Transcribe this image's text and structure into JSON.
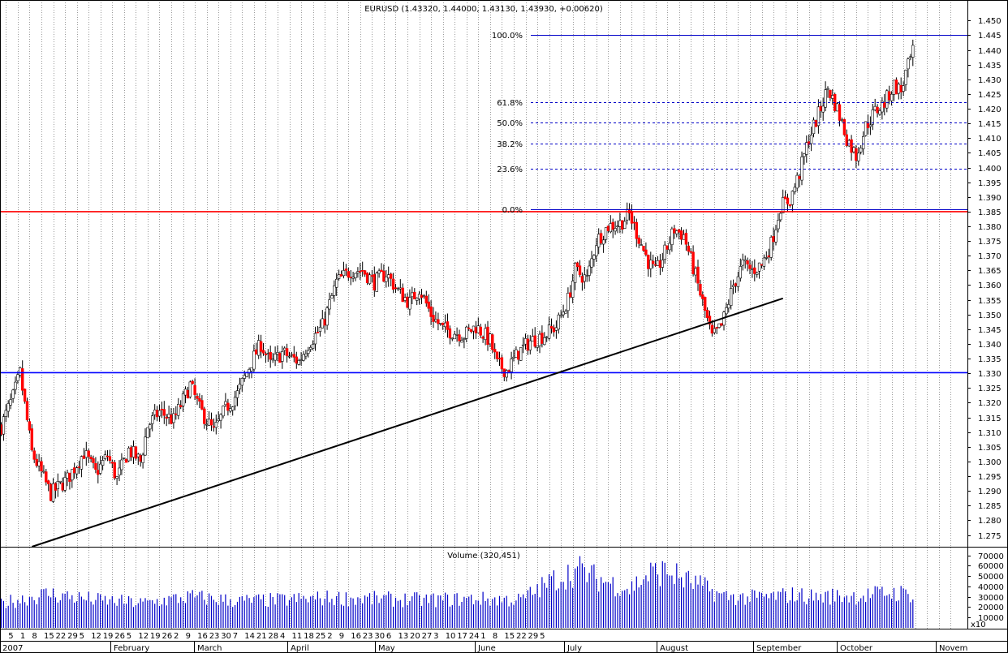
{
  "chart_data": [
    {
      "type": "candlestick",
      "title": "EURUSD (1.43320, 1.44000, 1.43130, 1.43930, +0.00620)",
      "xlabel": "",
      "ylabel": "",
      "ylim": [
        1.271,
        1.457
      ],
      "y_ticks": [
        "1.275",
        "1.280",
        "1.285",
        "1.290",
        "1.295",
        "1.300",
        "1.305",
        "1.310",
        "1.315",
        "1.320",
        "1.325",
        "1.330",
        "1.335",
        "1.340",
        "1.345",
        "1.350",
        "1.355",
        "1.360",
        "1.365",
        "1.370",
        "1.375",
        "1.380",
        "1.385",
        "1.390",
        "1.395",
        "1.400",
        "1.405",
        "1.410",
        "1.415",
        "1.420",
        "1.425",
        "1.430",
        "1.435",
        "1.440",
        "1.445",
        "1.450"
      ],
      "grid": "vertical dotted, weekly",
      "up_color": "#ffffff",
      "down_color": "#ff0000",
      "fibonacci": [
        {
          "label": "100.0%",
          "price": 1.445
        },
        {
          "label": "61.8%",
          "price": 1.4222
        },
        {
          "label": "50.0%",
          "price": 1.4152
        },
        {
          "label": "38.2%",
          "price": 1.4082
        },
        {
          "label": "23.6%",
          "price": 1.3996
        },
        {
          "label": "0.0%",
          "price": 1.3857
        }
      ],
      "horizontal_lines": [
        {
          "name": "resistance",
          "price": 1.385,
          "color": "#ff0000"
        },
        {
          "name": "support",
          "price": 1.3302,
          "color": "#0000ff"
        }
      ],
      "trendline": {
        "from": {
          "day": 13,
          "price": 1.271
        },
        "to": {
          "day": 331,
          "price": 1.3555
        },
        "color": "#000000"
      },
      "price_anchors": [
        [
          0,
          1.312
        ],
        [
          5,
          1.322
        ],
        [
          8,
          1.33
        ],
        [
          13,
          1.303
        ],
        [
          17,
          1.296
        ],
        [
          21,
          1.289
        ],
        [
          28,
          1.294
        ],
        [
          35,
          1.303
        ],
        [
          40,
          1.296
        ],
        [
          45,
          1.302
        ],
        [
          49,
          1.294
        ],
        [
          54,
          1.304
        ],
        [
          59,
          1.3
        ],
        [
          62,
          1.312
        ],
        [
          67,
          1.317
        ],
        [
          73,
          1.314
        ],
        [
          80,
          1.326
        ],
        [
          84,
          1.318
        ],
        [
          90,
          1.31
        ],
        [
          95,
          1.318
        ],
        [
          100,
          1.323
        ],
        [
          106,
          1.334
        ],
        [
          110,
          1.34
        ],
        [
          114,
          1.333
        ],
        [
          119,
          1.337
        ],
        [
          126,
          1.334
        ],
        [
          130,
          1.34
        ],
        [
          136,
          1.346
        ],
        [
          142,
          1.361
        ],
        [
          148,
          1.365
        ],
        [
          153,
          1.365
        ],
        [
          158,
          1.361
        ],
        [
          163,
          1.364
        ],
        [
          168,
          1.358
        ],
        [
          173,
          1.354
        ],
        [
          177,
          1.359
        ],
        [
          182,
          1.35
        ],
        [
          187,
          1.345
        ],
        [
          192,
          1.344
        ],
        [
          196,
          1.343
        ],
        [
          201,
          1.346
        ],
        [
          207,
          1.341
        ],
        [
          210,
          1.333
        ],
        [
          214,
          1.331
        ],
        [
          219,
          1.337
        ],
        [
          224,
          1.341
        ],
        [
          230,
          1.343
        ],
        [
          235,
          1.346
        ],
        [
          240,
          1.355
        ],
        [
          243,
          1.365
        ],
        [
          248,
          1.362
        ],
        [
          252,
          1.375
        ],
        [
          257,
          1.38
        ],
        [
          262,
          1.381
        ],
        [
          266,
          1.384
        ],
        [
          270,
          1.376
        ],
        [
          274,
          1.368
        ],
        [
          277,
          1.364
        ],
        [
          281,
          1.371
        ],
        [
          285,
          1.379
        ],
        [
          289,
          1.377
        ],
        [
          293,
          1.366
        ],
        [
          297,
          1.354
        ],
        [
          301,
          1.342
        ],
        [
          305,
          1.346
        ],
        [
          310,
          1.36
        ],
        [
          314,
          1.367
        ],
        [
          318,
          1.365
        ],
        [
          322,
          1.367
        ],
        [
          326,
          1.374
        ],
        [
          330,
          1.387
        ],
        [
          334,
          1.389
        ],
        [
          338,
          1.398
        ],
        [
          342,
          1.41
        ],
        [
          346,
          1.418
        ],
        [
          350,
          1.427
        ],
        [
          354,
          1.42
        ],
        [
          358,
          1.41
        ],
        [
          362,
          1.404
        ],
        [
          366,
          1.414
        ],
        [
          370,
          1.419
        ],
        [
          374,
          1.422
        ],
        [
          378,
          1.428
        ],
        [
          381,
          1.426
        ],
        [
          383,
          1.432
        ],
        [
          386,
          1.439
        ]
      ],
      "x_labels": [
        {
          "day": 1,
          "text": "5"
        },
        {
          "day": 5,
          "text": "1"
        },
        {
          "day": 11,
          "text": "8"
        },
        {
          "day": 17,
          "text": "15"
        },
        {
          "day": 23,
          "text": "22"
        },
        {
          "day": 28,
          "text": "29"
        },
        {
          "day": 34,
          "text": "5"
        },
        {
          "day": 40,
          "text": "12"
        },
        {
          "day": 46,
          "text": "19"
        },
        {
          "day": 52,
          "text": "26"
        },
        {
          "day": 58,
          "text": "5"
        },
        {
          "day": 64,
          "text": "12"
        },
        {
          "day": 70,
          "text": "19"
        },
        {
          "day": 75,
          "text": "26"
        },
        {
          "day": 81,
          "text": "2"
        },
        {
          "day": 87,
          "text": "9"
        },
        {
          "day": 93,
          "text": "16"
        },
        {
          "day": 99,
          "text": "23"
        },
        {
          "day": 105,
          "text": "30"
        },
        {
          "day": 111,
          "text": "7"
        },
        {
          "day": 117,
          "text": "14"
        },
        {
          "day": 123,
          "text": "21"
        },
        {
          "day": 128,
          "text": "28"
        },
        {
          "day": 134,
          "text": "4"
        },
        {
          "day": 140,
          "text": "11"
        },
        {
          "day": 146,
          "text": "18"
        },
        {
          "day": 152,
          "text": "25"
        },
        {
          "day": 158,
          "text": "2"
        },
        {
          "day": 164,
          "text": "9"
        },
        {
          "day": 170,
          "text": "16"
        },
        {
          "day": 175,
          "text": "23"
        },
        {
          "day": 181,
          "text": "30"
        },
        {
          "day": 187,
          "text": "6"
        },
        {
          "day": 193,
          "text": "13"
        },
        {
          "day": 199,
          "text": "20"
        },
        {
          "day": 205,
          "text": "27"
        },
        {
          "day": 211,
          "text": "3"
        },
        {
          "day": 217,
          "text": "10"
        },
        {
          "day": 222,
          "text": "17"
        },
        {
          "day": 228,
          "text": "24"
        },
        {
          "day": 234,
          "text": "1"
        },
        {
          "day": 240,
          "text": "8"
        },
        {
          "day": 246,
          "text": "15"
        },
        {
          "day": 252,
          "text": "22"
        },
        {
          "day": 258,
          "text": "29"
        },
        {
          "day": 264,
          "text": "5"
        }
      ],
      "month_labels": [
        {
          "day": 2,
          "text": "2007"
        },
        {
          "day": 27,
          "text": "February"
        },
        {
          "day": 47,
          "text": "March"
        },
        {
          "day": 70,
          "text": "April"
        },
        {
          "day": 90,
          "text": "May"
        },
        {
          "day": 113,
          "text": "June"
        },
        {
          "day": 134,
          "text": "July"
        },
        {
          "day": 155,
          "text": "August"
        },
        {
          "day": 178,
          "text": "September"
        },
        {
          "day": 198,
          "text": "October"
        },
        {
          "day": 220,
          "text": "Novem"
        }
      ]
    },
    {
      "type": "bar",
      "title": "Volume (320,451)",
      "xlabel": "",
      "ylabel": "",
      "ylim": [
        0,
        72000
      ],
      "y_ticks": [
        "70000",
        "60000",
        "50000",
        "40000",
        "30000",
        "20000",
        "10000"
      ],
      "y_unit": "x10",
      "volume_anchors": [
        [
          0,
          24000
        ],
        [
          20,
          33000
        ],
        [
          40,
          27000
        ],
        [
          60,
          24000
        ],
        [
          80,
          30000
        ],
        [
          100,
          26000
        ],
        [
          120,
          27000
        ],
        [
          140,
          29000
        ],
        [
          160,
          28000
        ],
        [
          180,
          27000
        ],
        [
          200,
          28000
        ],
        [
          220,
          27000
        ],
        [
          235,
          48000
        ],
        [
          245,
          56000
        ],
        [
          252,
          48000
        ],
        [
          260,
          42000
        ],
        [
          266,
          38000
        ],
        [
          275,
          53000
        ],
        [
          282,
          55000
        ],
        [
          290,
          46000
        ],
        [
          297,
          40000
        ],
        [
          305,
          31000
        ],
        [
          315,
          29000
        ],
        [
          325,
          30000
        ],
        [
          335,
          32000
        ],
        [
          345,
          30000
        ],
        [
          355,
          31000
        ],
        [
          365,
          31000
        ],
        [
          375,
          34000
        ],
        [
          386,
          33000
        ]
      ]
    }
  ]
}
